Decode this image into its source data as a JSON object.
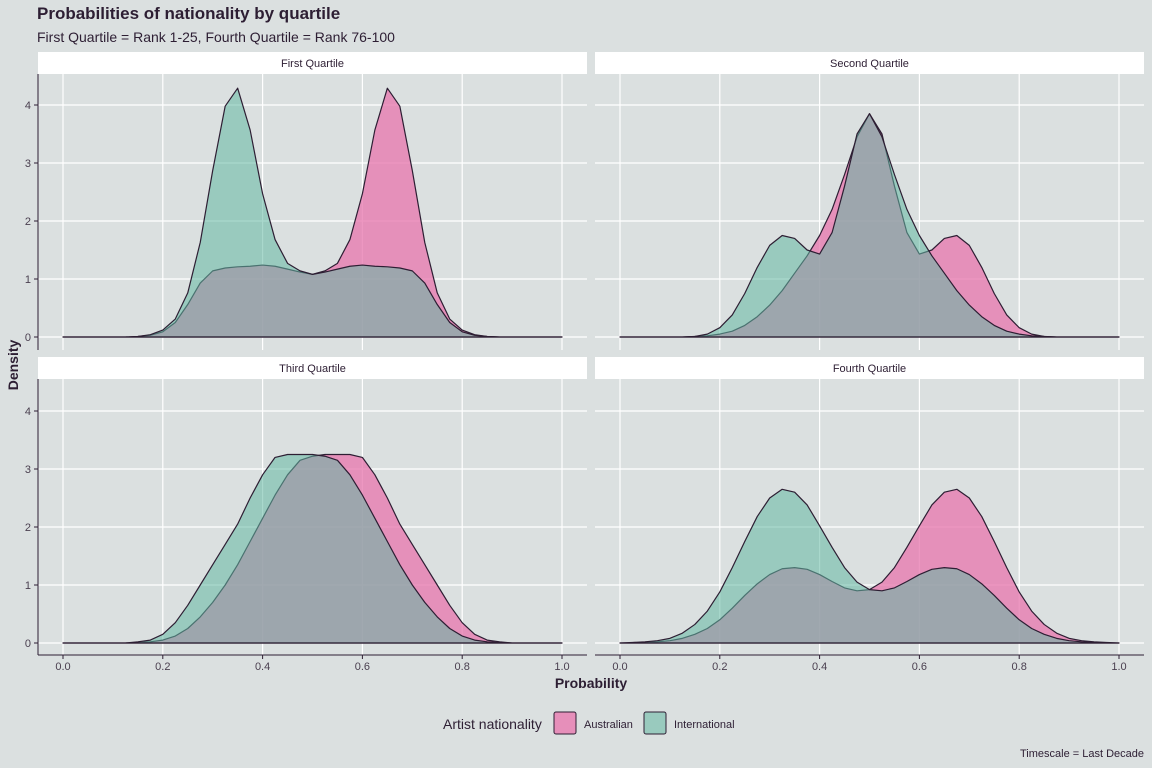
{
  "title": "Probabilities of nationality by quartile",
  "subtitle": "First Quartile = Rank 1-25, Fourth Quartile = Rank 76-100",
  "caption": "Timescale = Last Decade",
  "colors": {
    "background": "#dbe0e0",
    "Australian": "#e87ab0",
    "International": "#62b8a2",
    "outline": "#2d1e33",
    "grid": "#ffffff"
  },
  "chart_data": {
    "type": "area",
    "chart_subtype": "density",
    "xlabel": "Probability",
    "ylabel": "Density",
    "xlim": [
      0.0,
      1.0
    ],
    "ylim": [
      0,
      4.5
    ],
    "x_ticks": [
      "0.0",
      "0.2",
      "0.4",
      "0.6",
      "0.8",
      "1.0"
    ],
    "y_ticks": [
      "0",
      "1",
      "2",
      "3",
      "4"
    ],
    "grid": true,
    "legend": {
      "title": "Artist nationality",
      "position": "bottom",
      "entries": [
        "Australian",
        "International"
      ]
    },
    "x": [
      0.0,
      0.025,
      0.05,
      0.075,
      0.1,
      0.125,
      0.15,
      0.175,
      0.2,
      0.225,
      0.25,
      0.275,
      0.3,
      0.325,
      0.35,
      0.375,
      0.4,
      0.425,
      0.45,
      0.475,
      0.5,
      0.525,
      0.55,
      0.575,
      0.6,
      0.625,
      0.65,
      0.675,
      0.7,
      0.725,
      0.75,
      0.775,
      0.8,
      0.825,
      0.85,
      0.875,
      0.9,
      0.925,
      0.95,
      0.975,
      1.0
    ],
    "panels": [
      {
        "label": "First Quartile",
        "series": [
          {
            "name": "Australian",
            "values": [
              0.0,
              0.0,
              0.0,
              0.0,
              0.0,
              0.0,
              0.01,
              0.03,
              0.09,
              0.25,
              0.56,
              0.93,
              1.14,
              1.19,
              1.21,
              1.22,
              1.24,
              1.22,
              1.17,
              1.12,
              1.08,
              1.14,
              1.27,
              1.68,
              2.47,
              3.57,
              4.29,
              3.98,
              2.87,
              1.63,
              0.76,
              0.31,
              0.12,
              0.04,
              0.01,
              0.0,
              0.0,
              0.0,
              0.0,
              0.0,
              0.0
            ]
          },
          {
            "name": "International",
            "values": [
              0.0,
              0.0,
              0.0,
              0.0,
              0.0,
              0.0,
              0.01,
              0.04,
              0.12,
              0.31,
              0.76,
              1.63,
              2.87,
              3.98,
              4.29,
              3.57,
              2.47,
              1.68,
              1.27,
              1.14,
              1.08,
              1.12,
              1.17,
              1.22,
              1.24,
              1.22,
              1.21,
              1.19,
              1.14,
              0.93,
              0.56,
              0.25,
              0.09,
              0.03,
              0.01,
              0.0,
              0.0,
              0.0,
              0.0,
              0.0,
              0.0
            ]
          }
        ]
      },
      {
        "label": "Second Quartile",
        "series": [
          {
            "name": "Australian",
            "values": [
              0.0,
              0.0,
              0.0,
              0.0,
              0.0,
              0.0,
              0.01,
              0.02,
              0.05,
              0.1,
              0.2,
              0.35,
              0.55,
              0.8,
              1.1,
              1.4,
              1.75,
              2.2,
              2.8,
              3.45,
              3.85,
              3.5,
              2.6,
              1.8,
              1.43,
              1.5,
              1.7,
              1.75,
              1.58,
              1.2,
              0.75,
              0.38,
              0.16,
              0.05,
              0.01,
              0.0,
              0.0,
              0.0,
              0.0,
              0.0,
              0.0
            ]
          },
          {
            "name": "International",
            "values": [
              0.0,
              0.0,
              0.0,
              0.0,
              0.0,
              0.0,
              0.01,
              0.05,
              0.16,
              0.38,
              0.75,
              1.2,
              1.58,
              1.75,
              1.7,
              1.5,
              1.43,
              1.8,
              2.6,
              3.5,
              3.85,
              3.45,
              2.8,
              2.2,
              1.75,
              1.4,
              1.1,
              0.8,
              0.55,
              0.35,
              0.2,
              0.1,
              0.05,
              0.02,
              0.01,
              0.0,
              0.0,
              0.0,
              0.0,
              0.0,
              0.0
            ]
          }
        ]
      },
      {
        "label": "Third Quartile",
        "series": [
          {
            "name": "Australian",
            "values": [
              0.0,
              0.0,
              0.0,
              0.0,
              0.0,
              0.0,
              0.01,
              0.02,
              0.05,
              0.12,
              0.25,
              0.45,
              0.7,
              1.0,
              1.35,
              1.75,
              2.15,
              2.55,
              2.9,
              3.15,
              3.22,
              3.25,
              3.25,
              3.25,
              3.2,
              2.9,
              2.5,
              2.05,
              1.7,
              1.35,
              1.0,
              0.65,
              0.35,
              0.15,
              0.05,
              0.02,
              0.0,
              0.0,
              0.0,
              0.0,
              0.0
            ]
          },
          {
            "name": "International",
            "values": [
              0.0,
              0.0,
              0.0,
              0.0,
              0.0,
              0.0,
              0.02,
              0.05,
              0.15,
              0.35,
              0.65,
              1.0,
              1.35,
              1.7,
              2.05,
              2.5,
              2.9,
              3.2,
              3.25,
              3.25,
              3.25,
              3.22,
              3.15,
              2.9,
              2.55,
              2.15,
              1.75,
              1.35,
              1.0,
              0.7,
              0.45,
              0.25,
              0.12,
              0.05,
              0.02,
              0.01,
              0.0,
              0.0,
              0.0,
              0.0,
              0.0
            ]
          }
        ]
      },
      {
        "label": "Fourth Quartile",
        "series": [
          {
            "name": "Australian",
            "values": [
              0.0,
              0.0,
              0.01,
              0.02,
              0.04,
              0.08,
              0.15,
              0.25,
              0.4,
              0.6,
              0.82,
              1.02,
              1.18,
              1.28,
              1.3,
              1.27,
              1.18,
              1.06,
              0.95,
              0.9,
              0.92,
              1.05,
              1.3,
              1.65,
              2.02,
              2.38,
              2.6,
              2.65,
              2.5,
              2.18,
              1.75,
              1.3,
              0.88,
              0.55,
              0.32,
              0.17,
              0.08,
              0.04,
              0.02,
              0.01,
              0.0
            ]
          },
          {
            "name": "International",
            "values": [
              0.0,
              0.01,
              0.02,
              0.04,
              0.08,
              0.17,
              0.32,
              0.55,
              0.88,
              1.3,
              1.75,
              2.18,
              2.5,
              2.65,
              2.6,
              2.38,
              2.02,
              1.65,
              1.3,
              1.05,
              0.92,
              0.9,
              0.95,
              1.06,
              1.18,
              1.27,
              1.3,
              1.28,
              1.18,
              1.02,
              0.82,
              0.6,
              0.4,
              0.25,
              0.15,
              0.08,
              0.04,
              0.02,
              0.01,
              0.0,
              0.0
            ]
          }
        ]
      }
    ]
  }
}
